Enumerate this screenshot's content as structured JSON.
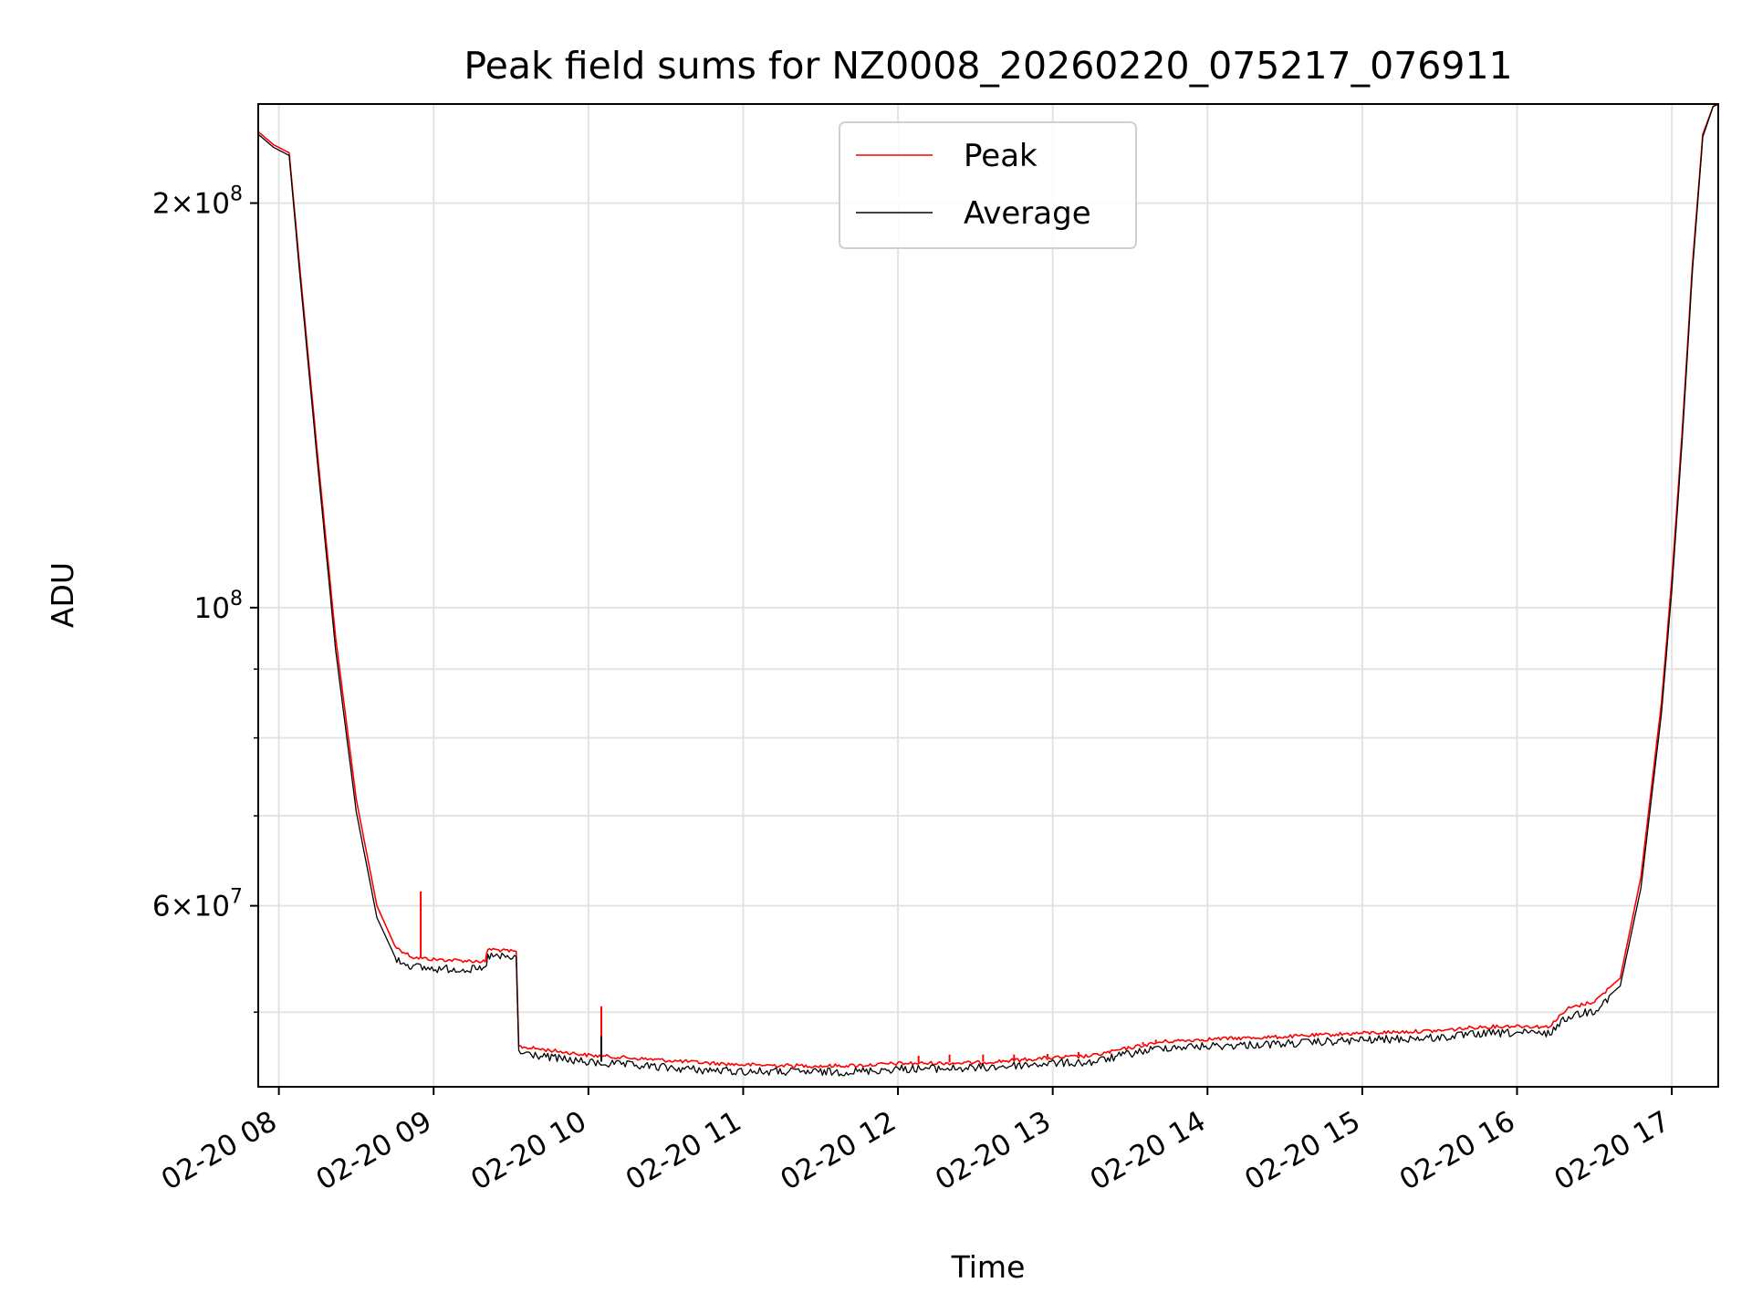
{
  "chart_data": {
    "type": "line",
    "title": "Peak field sums for NZ0008_20260220_075217_076911",
    "xlabel": "Time",
    "ylabel": "ADU",
    "y_scale": "log",
    "grid": true,
    "legend_position": "top-center",
    "xlim": [
      "2026-02-20 07:52",
      "2026-02-20 17:18"
    ],
    "ylim": [
      44000000,
      237000000
    ],
    "x_ticks": [
      {
        "value": "2026-02-20 08:00",
        "label": "02-20 08"
      },
      {
        "value": "2026-02-20 09:00",
        "label": "02-20 09"
      },
      {
        "value": "2026-02-20 10:00",
        "label": "02-20 10"
      },
      {
        "value": "2026-02-20 11:00",
        "label": "02-20 11"
      },
      {
        "value": "2026-02-20 12:00",
        "label": "02-20 12"
      },
      {
        "value": "2026-02-20 13:00",
        "label": "02-20 13"
      },
      {
        "value": "2026-02-20 14:00",
        "label": "02-20 14"
      },
      {
        "value": "2026-02-20 15:00",
        "label": "02-20 15"
      },
      {
        "value": "2026-02-20 16:00",
        "label": "02-20 16"
      },
      {
        "value": "2026-02-20 17:00",
        "label": "02-20 17"
      }
    ],
    "y_major_ticks": [
      {
        "value": 200000000,
        "mant": "2",
        "exp": "8"
      },
      {
        "value": 100000000,
        "mant": "",
        "exp": "8"
      },
      {
        "value": 60000000,
        "mant": "6",
        "exp": "7"
      }
    ],
    "y_minor_ticks": [
      50000000,
      70000000,
      80000000,
      90000000
    ],
    "series": [
      {
        "name": "Peak",
        "color": "#ff0000",
        "points": [
          [
            "2026-02-20 07:52",
            226000000
          ],
          [
            "2026-02-20 07:58",
            221000000
          ],
          [
            "2026-02-20 08:04",
            218000000
          ],
          [
            "2026-02-20 08:08",
            180000000
          ],
          [
            "2026-02-20 08:15",
            130000000
          ],
          [
            "2026-02-20 08:22",
            95000000
          ],
          [
            "2026-02-20 08:30",
            72000000
          ],
          [
            "2026-02-20 08:38",
            60000000
          ],
          [
            "2026-02-20 08:45",
            56000000
          ],
          [
            "2026-02-20 08:52",
            55000000
          ],
          [
            "2026-02-20 09:00",
            54800000
          ],
          [
            "2026-02-20 09:10",
            54700000
          ],
          [
            "2026-02-20 09:20",
            54600000
          ],
          [
            "2026-02-20 09:21",
            55800000
          ],
          [
            "2026-02-20 09:32",
            55500000
          ],
          [
            "2026-02-20 09:33",
            47200000
          ],
          [
            "2026-02-20 09:45",
            46900000
          ],
          [
            "2026-02-20 10:00",
            46500000
          ],
          [
            "2026-02-20 10:15",
            46300000
          ],
          [
            "2026-02-20 10:30",
            46100000
          ],
          [
            "2026-02-20 10:45",
            45900000
          ],
          [
            "2026-02-20 11:00",
            45750000
          ],
          [
            "2026-02-20 11:30",
            45650000
          ],
          [
            "2026-02-20 11:45",
            45700000
          ],
          [
            "2026-02-20 12:00",
            45850000
          ],
          [
            "2026-02-20 12:30",
            45900000
          ],
          [
            "2026-02-20 13:00",
            46300000
          ],
          [
            "2026-02-20 13:15",
            46450000
          ],
          [
            "2026-02-20 13:30",
            47100000
          ],
          [
            "2026-02-20 13:43",
            47600000
          ],
          [
            "2026-02-20 14:00",
            47800000
          ],
          [
            "2026-02-20 14:30",
            48000000
          ],
          [
            "2026-02-20 15:00",
            48300000
          ],
          [
            "2026-02-20 15:30",
            48500000
          ],
          [
            "2026-02-20 15:45",
            48800000
          ],
          [
            "2026-02-20 16:00",
            48900000
          ],
          [
            "2026-02-20 16:12",
            48800000
          ],
          [
            "2026-02-20 16:20",
            50400000
          ],
          [
            "2026-02-20 16:30",
            51000000
          ],
          [
            "2026-02-20 16:40",
            53000000
          ],
          [
            "2026-02-20 16:48",
            63000000
          ],
          [
            "2026-02-20 16:56",
            85000000
          ],
          [
            "2026-02-20 17:00",
            105000000
          ],
          [
            "2026-02-20 17:04",
            135000000
          ],
          [
            "2026-02-20 17:08",
            180000000
          ],
          [
            "2026-02-20 17:12",
            225000000
          ],
          [
            "2026-02-20 17:16",
            236000000
          ],
          [
            "2026-02-20 17:18",
            237000000
          ]
        ]
      },
      {
        "name": "Average",
        "color": "#000000",
        "points": [
          [
            "2026-02-20 07:52",
            225000000
          ],
          [
            "2026-02-20 07:58",
            220000000
          ],
          [
            "2026-02-20 08:04",
            217000000
          ],
          [
            "2026-02-20 08:08",
            178000000
          ],
          [
            "2026-02-20 08:15",
            128000000
          ],
          [
            "2026-02-20 08:22",
            93000000
          ],
          [
            "2026-02-20 08:30",
            70500000
          ],
          [
            "2026-02-20 08:38",
            58800000
          ],
          [
            "2026-02-20 08:45",
            55000000
          ],
          [
            "2026-02-20 08:52",
            54200000
          ],
          [
            "2026-02-20 09:00",
            54000000
          ],
          [
            "2026-02-20 09:10",
            54000000
          ],
          [
            "2026-02-20 09:20",
            53900000
          ],
          [
            "2026-02-20 09:21",
            55200000
          ],
          [
            "2026-02-20 09:32",
            55000000
          ],
          [
            "2026-02-20 09:33",
            46800000
          ],
          [
            "2026-02-20 09:45",
            46400000
          ],
          [
            "2026-02-20 10:00",
            46000000
          ],
          [
            "2026-02-20 10:15",
            45800000
          ],
          [
            "2026-02-20 10:30",
            45600000
          ],
          [
            "2026-02-20 10:45",
            45400000
          ],
          [
            "2026-02-20 11:00",
            45300000
          ],
          [
            "2026-02-20 11:30",
            45250000
          ],
          [
            "2026-02-20 11:45",
            45300000
          ],
          [
            "2026-02-20 12:00",
            45500000
          ],
          [
            "2026-02-20 12:30",
            45550000
          ],
          [
            "2026-02-20 13:00",
            45950000
          ],
          [
            "2026-02-20 13:15",
            46000000
          ],
          [
            "2026-02-20 13:30",
            46700000
          ],
          [
            "2026-02-20 13:43",
            47200000
          ],
          [
            "2026-02-20 14:00",
            47300000
          ],
          [
            "2026-02-20 14:30",
            47500000
          ],
          [
            "2026-02-20 15:00",
            47800000
          ],
          [
            "2026-02-20 15:30",
            48000000
          ],
          [
            "2026-02-20 15:45",
            48300000
          ],
          [
            "2026-02-20 16:00",
            48400000
          ],
          [
            "2026-02-20 16:12",
            48300000
          ],
          [
            "2026-02-20 16:20",
            49800000
          ],
          [
            "2026-02-20 16:30",
            50300000
          ],
          [
            "2026-02-20 16:40",
            52300000
          ],
          [
            "2026-02-20 16:48",
            61800000
          ],
          [
            "2026-02-20 16:56",
            83500000
          ],
          [
            "2026-02-20 17:00",
            103000000
          ],
          [
            "2026-02-20 17:04",
            133000000
          ],
          [
            "2026-02-20 17:08",
            178000000
          ],
          [
            "2026-02-20 17:12",
            224000000
          ],
          [
            "2026-02-20 17:16",
            236000000
          ],
          [
            "2026-02-20 17:18",
            237000000
          ]
        ]
      }
    ],
    "spikes": [
      {
        "series": "Peak",
        "time": "2026-02-20 08:55",
        "value": 61500000
      },
      {
        "series": "Peak",
        "time": "2026-02-20 10:05",
        "value": 50500000
      },
      {
        "series": "Average",
        "time": "2026-02-20 10:05",
        "value": 48000000
      },
      {
        "series": "Peak",
        "time": "2026-02-20 12:08",
        "value": 46400000
      },
      {
        "series": "Peak",
        "time": "2026-02-20 12:20",
        "value": 46500000
      },
      {
        "series": "Peak",
        "time": "2026-02-20 12:33",
        "value": 46500000
      },
      {
        "series": "Peak",
        "time": "2026-02-20 12:45",
        "value": 46500000
      },
      {
        "series": "Peak",
        "time": "2026-02-20 12:58",
        "value": 46550000
      },
      {
        "series": "Peak",
        "time": "2026-02-20 13:10",
        "value": 46700000
      },
      {
        "series": "Peak",
        "time": "2026-02-20 13:22",
        "value": 46800000
      },
      {
        "series": "Peak",
        "time": "2026-02-20 13:35",
        "value": 47500000
      },
      {
        "series": "Peak",
        "time": "2026-02-20 13:40",
        "value": 47700000
      }
    ]
  }
}
